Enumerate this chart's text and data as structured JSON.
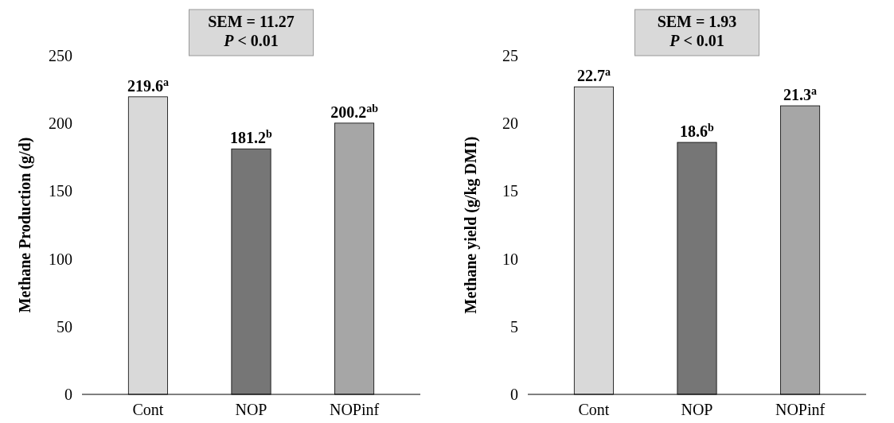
{
  "chart_data": [
    {
      "type": "bar",
      "ylabel": "Methane Production (g/d)",
      "categories": [
        "Cont",
        "NOP",
        "NOPinf"
      ],
      "values": [
        219.6,
        181.2,
        200.2
      ],
      "colors": [
        "#d9d9d9",
        "#767676",
        "#a6a6a6"
      ],
      "value_labels": [
        "219.6$^{a}$",
        "181.2$^{b}$",
        "200.2$^{ab}$"
      ],
      "ylim": [
        0,
        250
      ],
      "yticks": [
        0,
        50,
        100,
        150,
        200,
        250
      ],
      "grid": false,
      "annotations": [
        "SEM = 11.27",
        "P < 0.01"
      ]
    },
    {
      "type": "bar",
      "ylabel": "Methane yield (g/kg DMI)",
      "categories": [
        "Cont",
        "NOP",
        "NOPinf"
      ],
      "values": [
        22.7,
        18.6,
        21.3
      ],
      "colors": [
        "#d9d9d9",
        "#767676",
        "#a6a6a6"
      ],
      "value_labels": [
        "22.7$^{a}$",
        "18.6$^{b}$",
        "21.3$^{a}$"
      ],
      "ylim": [
        0,
        25
      ],
      "yticks": [
        0,
        5,
        10,
        15,
        20,
        25
      ],
      "grid": false,
      "annotations": [
        "SEM = 1.93",
        "P < 0.01"
      ]
    }
  ]
}
